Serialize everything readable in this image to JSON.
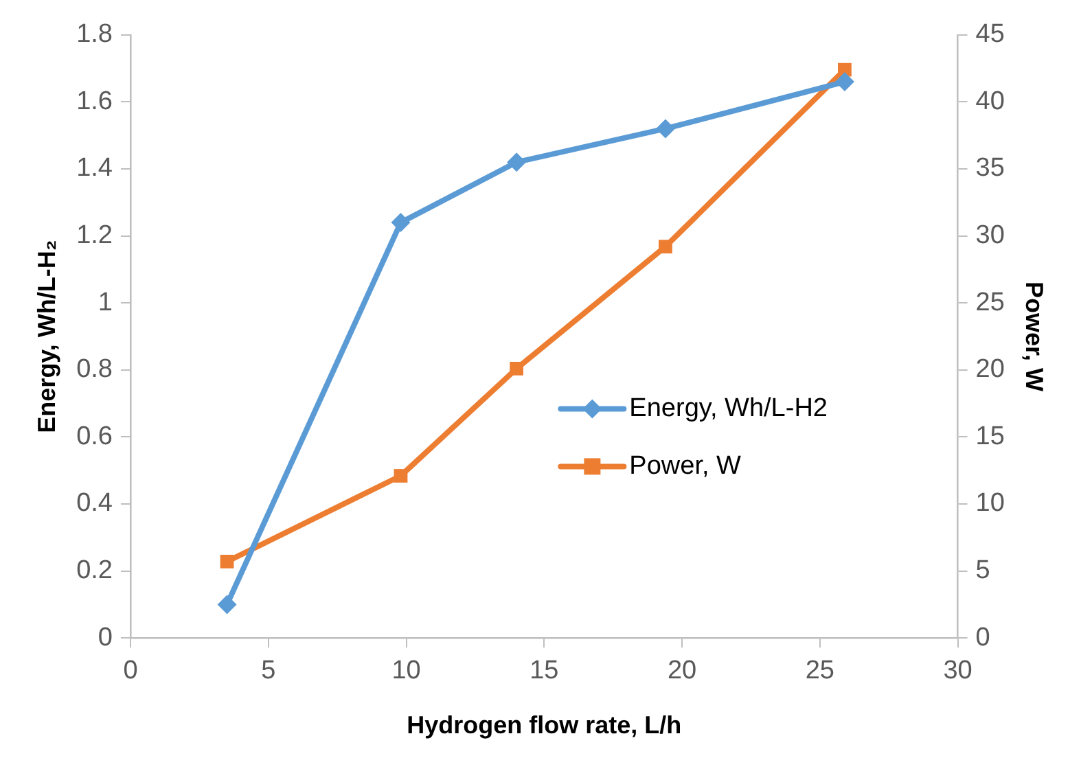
{
  "chart_data": {
    "type": "line",
    "xlabel": "Hydrogen flow rate, L/h",
    "ylabel": "Energy, Wh/L-H₂",
    "y2label": "Power, W",
    "xlim": [
      0,
      30
    ],
    "xticks": [
      0,
      5,
      10,
      15,
      20,
      25,
      30
    ],
    "ylim": [
      0,
      1.8
    ],
    "yticks": [
      0,
      0.2,
      0.4,
      0.6,
      0.8,
      1,
      1.2,
      1.4,
      1.6,
      1.8
    ],
    "y2lim": [
      0,
      45
    ],
    "y2ticks": [
      0,
      5,
      10,
      15,
      20,
      25,
      30,
      35,
      40,
      45
    ],
    "x": [
      3.5,
      9.8,
      14,
      19.4,
      25.9
    ],
    "series": [
      {
        "name": "Energy, Wh/L-H2",
        "color": "#5b9bd5",
        "marker": "diamond",
        "values": [
          0.1,
          1.24,
          1.42,
          1.52,
          1.66
        ]
      },
      {
        "name": "Power, W",
        "color": "#ed7d31",
        "marker": "square",
        "axis": "y2",
        "values": [
          5.7,
          12.1,
          20.1,
          29.2,
          42.4
        ]
      }
    ],
    "grid": false,
    "legend": "right",
    "line_style": "solid"
  }
}
